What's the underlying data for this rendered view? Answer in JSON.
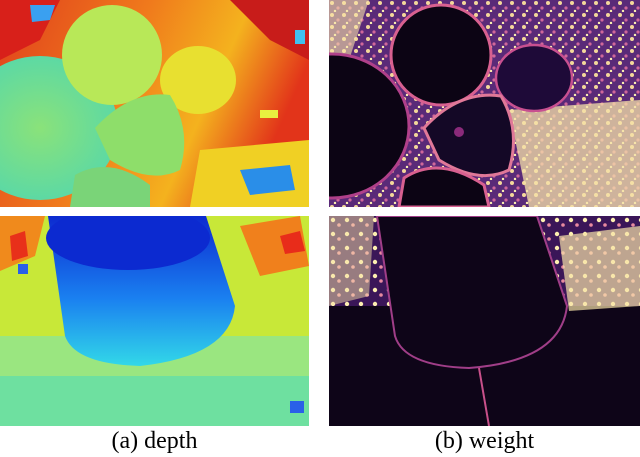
{
  "figure": {
    "captions": {
      "depth": "(a) depth",
      "weight": "(b) weight"
    },
    "panels": [
      {
        "name": "depth-map-scene-1",
        "column": "depth",
        "row": 1,
        "colormap": "jet"
      },
      {
        "name": "weight-map-scene-1",
        "column": "weight",
        "row": 1,
        "colormap": "magma"
      },
      {
        "name": "depth-map-scene-2",
        "column": "depth",
        "row": 2,
        "colormap": "jet"
      },
      {
        "name": "weight-map-scene-2",
        "column": "weight",
        "row": 2,
        "colormap": "magma"
      }
    ],
    "colors": {
      "background": "#ffffff",
      "depth_near": "#0a3cd8",
      "depth_mid": "#5ee0a0",
      "depth_far": "#e8301a",
      "weight_low": "#0c0414",
      "weight_high": "#fcefb0"
    }
  }
}
